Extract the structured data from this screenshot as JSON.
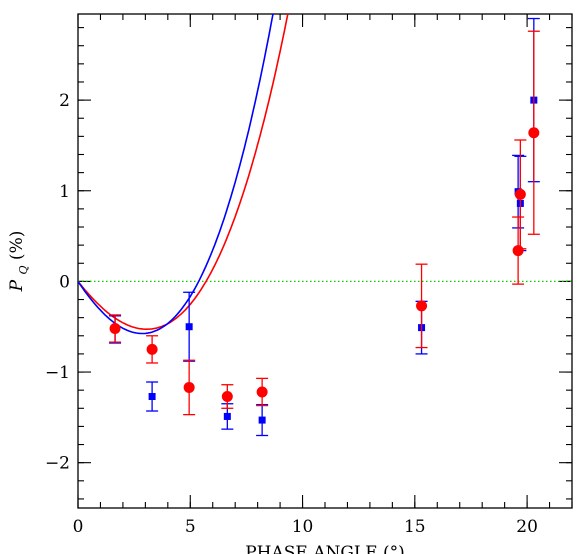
{
  "chart_data": {
    "type": "scatter",
    "xlabel": "PHASE ANGLE (°)",
    "ylabel": "P",
    "ylabel_subscript": "Q",
    "ylabel_unit": "(%)",
    "xlim": [
      0,
      22
    ],
    "ylim": [
      -2.5,
      2.95
    ],
    "x_major_ticks": [
      0,
      5,
      10,
      15,
      20
    ],
    "x_tick_labels": [
      "0",
      "5",
      "10",
      "15",
      "20"
    ],
    "y_major_ticks": [
      -2,
      -1,
      0,
      1,
      2
    ],
    "y_tick_labels": [
      "−2",
      "−1",
      "0",
      "1",
      "2"
    ],
    "x_minor_step": 1,
    "y_minor_step": 0.2,
    "reference_line": {
      "y": 0,
      "color": "#00cc00",
      "style": "dotted"
    },
    "series": [
      {
        "color": "#ff0000",
        "marker": "circle",
        "points": [
          {
            "x": 1.65,
            "y": -0.52,
            "err": 0.15
          },
          {
            "x": 3.3,
            "y": -0.75,
            "err": 0.15
          },
          {
            "x": 4.95,
            "y": -1.17,
            "err": 0.3
          },
          {
            "x": 6.65,
            "y": -1.27,
            "err": 0.13
          },
          {
            "x": 8.2,
            "y": -1.22,
            "err": 0.15
          },
          {
            "x": 15.3,
            "y": -0.27,
            "err": 0.46
          },
          {
            "x": 19.6,
            "y": 0.34,
            "err": 0.37
          },
          {
            "x": 19.7,
            "y": 0.96,
            "err": 0.6
          },
          {
            "x": 20.3,
            "y": 1.64,
            "err": 1.12
          }
        ],
        "fit": {
          "type": "polynomial",
          "coefficients": [
            -0.313,
            0.0355,
            0.0034
          ]
        }
      },
      {
        "color": "#0000ff",
        "marker": "square",
        "points": [
          {
            "x": 1.65,
            "y": -0.53,
            "err": 0.15
          },
          {
            "x": 3.3,
            "y": -1.27,
            "err": 0.16
          },
          {
            "x": 4.95,
            "y": -0.5,
            "err": 0.38
          },
          {
            "x": 6.65,
            "y": -1.49,
            "err": 0.14
          },
          {
            "x": 8.2,
            "y": -1.53,
            "err": 0.17
          },
          {
            "x": 15.3,
            "y": -0.51,
            "err": 0.29
          },
          {
            "x": 19.6,
            "y": 0.99,
            "err": 0.4
          },
          {
            "x": 19.7,
            "y": 0.86,
            "err": 0.52
          },
          {
            "x": 20.3,
            "y": 2.0,
            "err": 0.9
          }
        ],
        "fit": {
          "type": "polynomial",
          "coefficients": [
            -0.37,
            0.0479,
            0.0039
          ]
        }
      }
    ]
  }
}
